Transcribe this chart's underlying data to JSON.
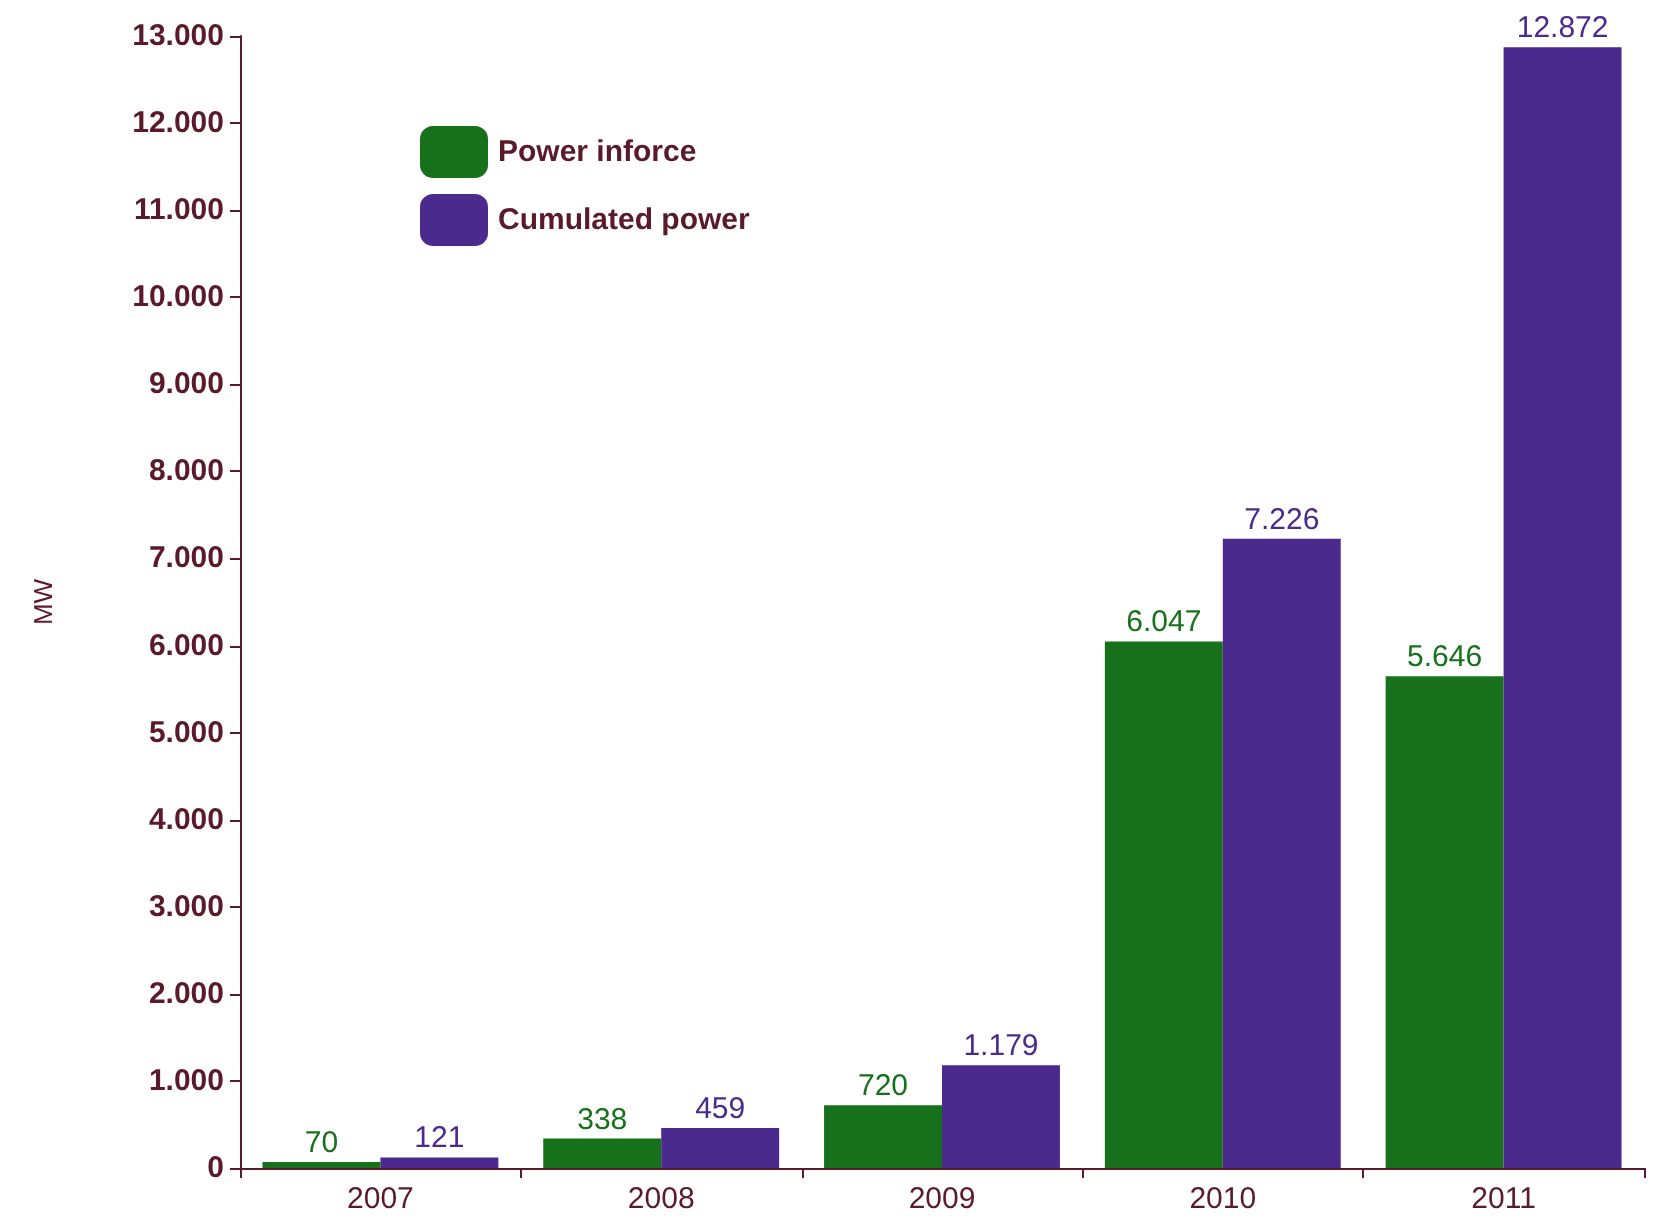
{
  "chart_data": {
    "type": "bar",
    "ylabel": "MW",
    "categories": [
      "2007",
      "2008",
      "2009",
      "2010",
      "2011"
    ],
    "series": [
      {
        "name": "Power inforce",
        "color": "#17711a",
        "values": [
          70,
          338,
          720,
          6047,
          5646
        ],
        "value_labels": [
          "70",
          "338",
          "720",
          "6.047",
          "5.646"
        ]
      },
      {
        "name": "Cumulated power",
        "color": "#4a2a8c",
        "values": [
          121,
          459,
          1179,
          7226,
          12872
        ],
        "value_labels": [
          "121",
          "459",
          "1.179",
          "7.226",
          "12.872"
        ]
      }
    ],
    "ylim": [
      0,
      13000
    ],
    "yticks": [
      {
        "value": 0,
        "label": "0"
      },
      {
        "value": 1000,
        "label": "1.000"
      },
      {
        "value": 2000,
        "label": "2.000"
      },
      {
        "value": 3000,
        "label": "3.000"
      },
      {
        "value": 4000,
        "label": "4.000"
      },
      {
        "value": 5000,
        "label": "5.000"
      },
      {
        "value": 6000,
        "label": "6.000"
      },
      {
        "value": 7000,
        "label": "7.000"
      },
      {
        "value": 8000,
        "label": "8.000"
      },
      {
        "value": 9000,
        "label": "9.000"
      },
      {
        "value": 10000,
        "label": "10.000"
      },
      {
        "value": 11000,
        "label": "11.000"
      },
      {
        "value": 12000,
        "label": "12.000"
      },
      {
        "value": 13000,
        "label": "13.000"
      }
    ],
    "grid": false,
    "legend": "top left"
  }
}
